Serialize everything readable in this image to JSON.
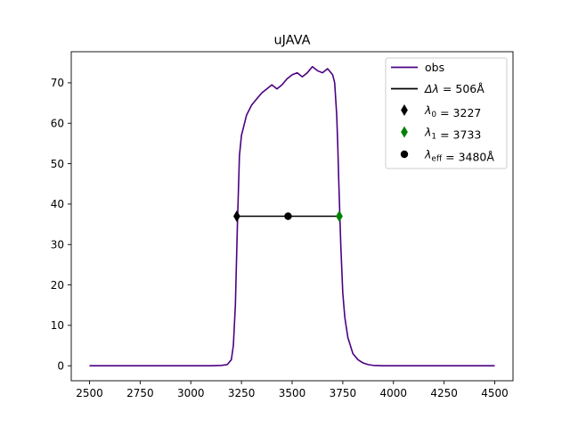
{
  "chart_data": {
    "type": "line",
    "title": "uJAVA",
    "xlabel": "",
    "ylabel": "",
    "xlim": [
      2410,
      4590
    ],
    "ylim": [
      -3.7,
      77.7
    ],
    "x_ticks": [
      2500,
      2750,
      3000,
      3250,
      3500,
      3750,
      4000,
      4250,
      4500
    ],
    "x_tick_labels": [
      "2500",
      "2750",
      "3000",
      "3250",
      "3500",
      "3750",
      "4000",
      "4250",
      "4500"
    ],
    "y_ticks": [
      0,
      10,
      20,
      30,
      40,
      50,
      60,
      70
    ],
    "y_tick_labels": [
      "0",
      "10",
      "20",
      "30",
      "40",
      "50",
      "60",
      "70"
    ],
    "grid": false,
    "legend_position": "top-right",
    "series": [
      {
        "name": "obs",
        "kind": "line",
        "color": "#4b0082",
        "x": [
          2500,
          2700,
          2900,
          3100,
          3150,
          3180,
          3200,
          3210,
          3220,
          3230,
          3240,
          3250,
          3260,
          3275,
          3300,
          3325,
          3350,
          3375,
          3400,
          3425,
          3450,
          3475,
          3500,
          3525,
          3550,
          3575,
          3600,
          3625,
          3650,
          3675,
          3700,
          3710,
          3720,
          3725,
          3730,
          3735,
          3740,
          3745,
          3750,
          3760,
          3775,
          3800,
          3825,
          3850,
          3875,
          3900,
          3950,
          4000,
          4250,
          4500
        ],
        "y": [
          0,
          0,
          0,
          0,
          0.1,
          0.3,
          1.5,
          5,
          15,
          35,
          52,
          57,
          59,
          62,
          64.5,
          66,
          67.5,
          68.5,
          69.5,
          68.5,
          69.5,
          71,
          72,
          72.5,
          71.5,
          72.5,
          74,
          73,
          72.5,
          73.5,
          72,
          70,
          62,
          55,
          46,
          38,
          30,
          24,
          18,
          12,
          7,
          3,
          1.5,
          0.7,
          0.3,
          0.1,
          0,
          0,
          0,
          0
        ]
      },
      {
        "name": "Δλ = 506Å",
        "kind": "segment",
        "color": "#000000",
        "x": [
          3227,
          3733
        ],
        "y": [
          37,
          37
        ]
      },
      {
        "name": "λ0 = 3227",
        "kind": "marker",
        "marker": "thin_diamond",
        "color": "#000000",
        "x": [
          3227
        ],
        "y": [
          37
        ]
      },
      {
        "name": "λ1 = 3733",
        "kind": "marker",
        "marker": "thin_diamond",
        "color": "#008000",
        "x": [
          3733
        ],
        "y": [
          37
        ]
      },
      {
        "name": "λeff = 3480Å",
        "kind": "marker",
        "marker": "circle",
        "color": "#000000",
        "x": [
          3480
        ],
        "y": [
          37
        ]
      }
    ],
    "legend": [
      {
        "kind": "line",
        "color": "#4b0082",
        "parts": [
          {
            "t": "obs"
          }
        ]
      },
      {
        "kind": "segment",
        "color": "#000000",
        "parts": [
          {
            "t": "Δλ",
            "i": true
          },
          {
            "t": " = 506Å"
          }
        ]
      },
      {
        "kind": "diamond",
        "color": "#000000",
        "parts": [
          {
            "t": "λ",
            "i": true
          },
          {
            "t": "0",
            "sub": true
          },
          {
            "t": " = 3227"
          }
        ]
      },
      {
        "kind": "diamond",
        "color": "#008000",
        "parts": [
          {
            "t": "λ",
            "i": true
          },
          {
            "t": "1",
            "sub": true
          },
          {
            "t": " = 3733"
          }
        ]
      },
      {
        "kind": "circle",
        "color": "#000000",
        "parts": [
          {
            "t": "λ",
            "i": true
          },
          {
            "t": "eff",
            "sub": true
          },
          {
            "t": " = 3480Å"
          }
        ]
      }
    ]
  }
}
